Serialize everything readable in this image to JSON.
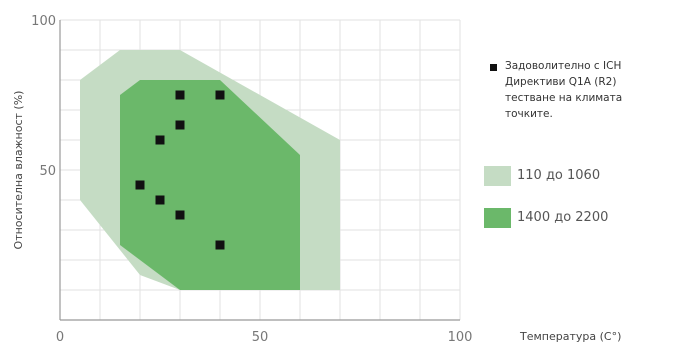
{
  "chart_data": {
    "type": "scatter",
    "xlabel": "Температура (C°)",
    "ylabel": "Относителна влажност (%)",
    "xlim": [
      0,
      100
    ],
    "ylim": [
      0,
      100
    ],
    "x_ticks": [
      "0",
      "50",
      "100"
    ],
    "y_ticks": [
      "100",
      "50"
    ],
    "grid": true,
    "legend_position": "right",
    "regions": [
      {
        "name": "110 до 1060",
        "color": "#c5dcc4",
        "points": [
          [
            5,
            40
          ],
          [
            5,
            80
          ],
          [
            15,
            90
          ],
          [
            30,
            90
          ],
          [
            70,
            60
          ],
          [
            70,
            10
          ],
          [
            30,
            10
          ],
          [
            20,
            15
          ]
        ]
      },
      {
        "name": "1400 до 2200",
        "color": "#6bb86a",
        "points": [
          [
            15,
            25
          ],
          [
            15,
            75
          ],
          [
            20,
            80
          ],
          [
            40,
            80
          ],
          [
            60,
            55
          ],
          [
            60,
            10
          ],
          [
            30,
            10
          ]
        ]
      }
    ],
    "series": [
      {
        "name": "Задоволително с ICH Директиви Q1A (R2) тестване на климата точките.",
        "color": "#111111",
        "points": [
          [
            30,
            75
          ],
          [
            40,
            75
          ],
          [
            30,
            65
          ],
          [
            25,
            60
          ],
          [
            20,
            45
          ],
          [
            25,
            40
          ],
          [
            30,
            35
          ],
          [
            40,
            25
          ]
        ]
      }
    ],
    "legend_lines": [
      "Задоволително с ICH",
      "Директиви Q1A (R2)",
      "тестване на климата",
      "точките."
    ]
  }
}
